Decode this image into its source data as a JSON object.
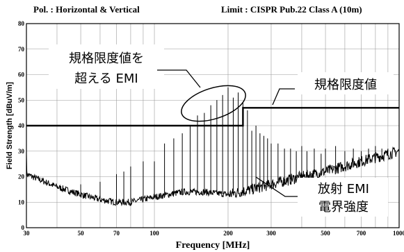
{
  "header": {
    "polarization": "Pol. : Horizontal & Vertical",
    "limit": "Limit : CISPR Pub.22 Class A (10m)"
  },
  "chart_data": {
    "type": "line",
    "xlabel": "Frequency [MHz]",
    "ylabel": "Field Strength [dBuV/m]",
    "x_scale": "log",
    "xlim": [
      30,
      1000
    ],
    "ylim": [
      0,
      80
    ],
    "grid": true,
    "x_ticks": [
      30,
      50,
      70,
      100,
      200,
      300,
      500,
      700,
      1000
    ],
    "y_ticks": [
      0,
      10,
      20,
      30,
      40,
      50,
      60,
      70,
      80
    ],
    "limit_line": {
      "points": [
        [
          30,
          40
        ],
        [
          230,
          40
        ],
        [
          230,
          47
        ],
        [
          1000,
          47
        ]
      ]
    },
    "noise_floor": {
      "x": [
        30,
        40,
        50,
        60,
        70,
        80,
        100,
        130,
        160,
        200,
        250,
        300,
        400,
        500,
        700,
        1000
      ],
      "y": [
        21,
        16,
        13,
        11,
        10,
        10,
        12,
        14,
        14,
        13,
        15,
        17,
        20,
        22,
        26,
        30
      ]
    },
    "peaks": {
      "x": [
        50,
        60,
        70,
        75,
        80,
        90,
        100,
        110,
        120,
        130,
        140,
        150,
        160,
        170,
        180,
        190,
        200,
        210,
        220,
        230,
        240,
        250,
        260,
        270,
        280,
        290,
        300,
        320,
        340,
        360,
        380,
        400,
        420,
        450,
        480,
        500,
        550,
        600,
        650,
        700,
        750,
        800,
        850,
        900
      ],
      "y": [
        17,
        18,
        21,
        22,
        24,
        26,
        26,
        33,
        35,
        37,
        40,
        44,
        45,
        48,
        50,
        52,
        55,
        51,
        53,
        49,
        46,
        38,
        40,
        37,
        36,
        35,
        33,
        33,
        31,
        31,
        30,
        32,
        30,
        31,
        29,
        31,
        32,
        30,
        31,
        30,
        31,
        32,
        31,
        31
      ]
    },
    "annotations": {
      "exceeding_emi": [
        "規格限度値を",
        "超える EMI"
      ],
      "limit_value": "規格限度値",
      "radiated_emi": [
        "放射 EMI",
        "電界強度"
      ]
    }
  }
}
